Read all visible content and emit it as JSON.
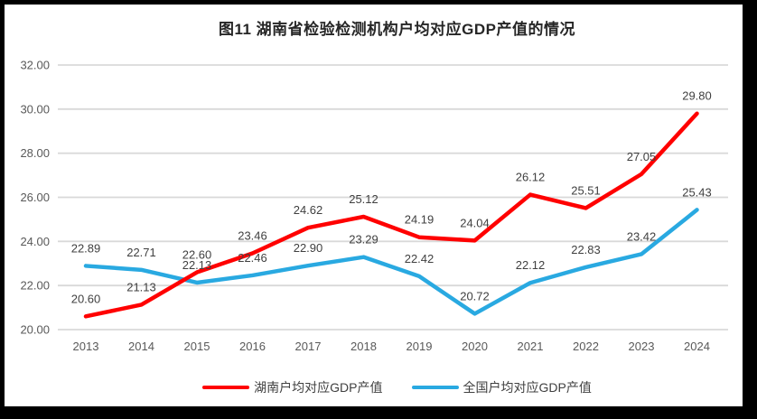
{
  "chart_data": {
    "type": "line",
    "title": "图11  湖南省检验检测机构户均对应GDP产值的情况",
    "categories": [
      "2013",
      "2014",
      "2015",
      "2016",
      "2017",
      "2018",
      "2019",
      "2020",
      "2021",
      "2022",
      "2023",
      "2024"
    ],
    "series": [
      {
        "name": "湖南户均对应GDP产值",
        "color": "#FF0000",
        "values": [
          20.6,
          21.13,
          22.6,
          23.46,
          24.62,
          25.12,
          24.19,
          24.04,
          26.12,
          25.51,
          27.05,
          29.8
        ]
      },
      {
        "name": "全国户均对应GDP产值",
        "color": "#29A9E1",
        "values": [
          22.89,
          22.71,
          22.13,
          22.46,
          22.9,
          23.29,
          22.42,
          20.72,
          22.12,
          22.83,
          23.42,
          25.43
        ]
      }
    ],
    "xlabel": "",
    "ylabel": "",
    "ylim": [
      20,
      32
    ],
    "ytick_step": 2,
    "ytick_labels": [
      "20.00",
      "22.00",
      "24.00",
      "26.00",
      "28.00",
      "30.00",
      "32.00"
    ],
    "grid": "horizontal-only",
    "legend_position": "bottom",
    "data_labels_shown": true,
    "colors": {
      "gridline": "#D9D9D9",
      "axis_text": "#595959",
      "data_label": "#404040",
      "title_text": "#262626",
      "frame_border": "#000000",
      "background": "#FFFFFF"
    }
  }
}
